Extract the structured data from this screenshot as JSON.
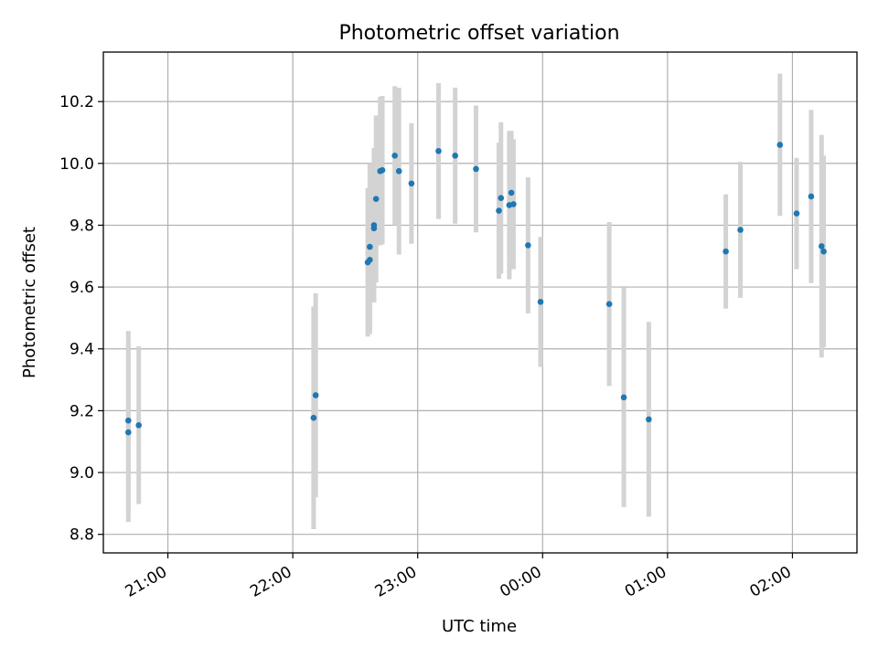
{
  "chart_data": {
    "type": "scatter",
    "title": "Photometric offset variation",
    "xlabel": "UTC time",
    "ylabel": "Photometric offset",
    "x_axis": "time (HH:MM, UTC); 20:xx-23:xx on day 1, 00:xx-02:xx on day 2",
    "xlim": [
      "20:29",
      "02:31"
    ],
    "ylim": [
      8.74,
      10.36
    ],
    "x_ticks": [
      "21:00",
      "22:00",
      "23:00",
      "00:00",
      "01:00",
      "02:00"
    ],
    "y_ticks": [
      8.8,
      9.0,
      9.2,
      9.4,
      9.6,
      9.8,
      10.0,
      10.2
    ],
    "y_tick_labels": [
      "8.8",
      "9.0",
      "9.2",
      "9.4",
      "9.6",
      "9.8",
      "10.0",
      "10.2"
    ],
    "grid": true,
    "marker_color": "#1f77b4",
    "errorbar_color": "#d3d3d3",
    "points": [
      {
        "t": "20:41",
        "y": 9.168,
        "err": 0.29
      },
      {
        "t": "20:41",
        "y": 9.13,
        "err": 0.29
      },
      {
        "t": "20:46",
        "y": 9.153,
        "err": 0.255
      },
      {
        "t": "22:10",
        "y": 9.177,
        "err": 0.36
      },
      {
        "t": "22:11",
        "y": 9.25,
        "err": 0.33
      },
      {
        "t": "22:36",
        "y": 9.68,
        "err": 0.24
      },
      {
        "t": "22:37",
        "y": 9.688,
        "err": 0.24
      },
      {
        "t": "22:37",
        "y": 9.73,
        "err": 0.27
      },
      {
        "t": "22:39",
        "y": 9.79,
        "err": 0.24
      },
      {
        "t": "22:39",
        "y": 9.8,
        "err": 0.25
      },
      {
        "t": "22:40",
        "y": 9.885,
        "err": 0.27
      },
      {
        "t": "22:42",
        "y": 9.975,
        "err": 0.24
      },
      {
        "t": "22:43",
        "y": 9.978,
        "err": 0.24
      },
      {
        "t": "22:49",
        "y": 10.025,
        "err": 0.225
      },
      {
        "t": "22:51",
        "y": 9.975,
        "err": 0.27
      },
      {
        "t": "22:57",
        "y": 9.935,
        "err": 0.195
      },
      {
        "t": "23:10",
        "y": 10.04,
        "err": 0.22
      },
      {
        "t": "23:18",
        "y": 10.025,
        "err": 0.22
      },
      {
        "t": "23:28",
        "y": 9.982,
        "err": 0.205
      },
      {
        "t": "23:39",
        "y": 9.847,
        "err": 0.22
      },
      {
        "t": "23:40",
        "y": 9.888,
        "err": 0.245
      },
      {
        "t": "23:44",
        "y": 9.865,
        "err": 0.24
      },
      {
        "t": "23:45",
        "y": 9.905,
        "err": 0.2
      },
      {
        "t": "23:46",
        "y": 9.868,
        "err": 0.21
      },
      {
        "t": "23:53",
        "y": 9.735,
        "err": 0.22
      },
      {
        "t": "23:59",
        "y": 9.552,
        "err": 0.21
      },
      {
        "t": "00:32",
        "y": 9.545,
        "err": 0.265
      },
      {
        "t": "00:39",
        "y": 9.243,
        "err": 0.355
      },
      {
        "t": "00:51",
        "y": 9.172,
        "err": 0.315
      },
      {
        "t": "01:28",
        "y": 9.715,
        "err": 0.185
      },
      {
        "t": "01:35",
        "y": 9.785,
        "err": 0.22
      },
      {
        "t": "01:54",
        "y": 10.06,
        "err": 0.23
      },
      {
        "t": "02:02",
        "y": 9.838,
        "err": 0.18
      },
      {
        "t": "02:09",
        "y": 9.893,
        "err": 0.28
      },
      {
        "t": "02:14",
        "y": 9.732,
        "err": 0.36
      },
      {
        "t": "02:15",
        "y": 9.715,
        "err": 0.31
      }
    ]
  }
}
